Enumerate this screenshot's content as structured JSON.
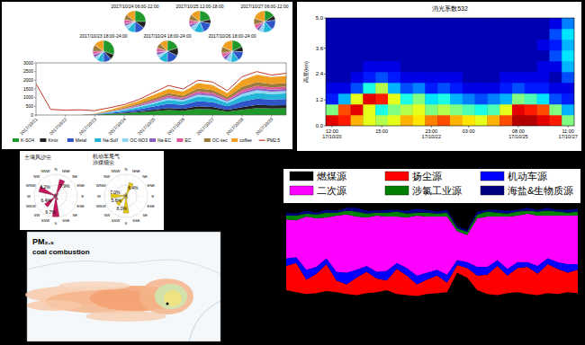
{
  "chart_data": [
    {
      "type": "area",
      "stacked": true,
      "legend": "bottom",
      "grid": false,
      "categories": [
        "2017/10/21",
        null,
        "2017/10/22",
        null,
        "2017/10/23",
        null,
        "2017/10/24",
        null,
        "2017/10/25",
        null,
        "2017/10/26",
        null,
        "2017/10/27",
        null,
        "2017/10/28",
        null,
        "2017/10/29",
        null
      ],
      "ylim": [
        0,
        3000
      ],
      "yticks": [
        0,
        500,
        1000,
        1500,
        2000,
        2500,
        3000
      ],
      "series": [
        {
          "name": "K-SO4",
          "type": "area",
          "color": "#1f9a2a",
          "values": [
            0,
            0,
            0,
            0,
            10,
            60,
            90,
            150,
            220,
            280,
            250,
            350,
            320,
            200,
            300,
            400,
            380,
            390
          ]
        },
        {
          "name": "Kmix",
          "type": "area",
          "color": "#222222",
          "values": [
            0,
            0,
            0,
            0,
            5,
            20,
            40,
            60,
            90,
            120,
            110,
            150,
            140,
            100,
            150,
            180,
            170,
            175
          ]
        },
        {
          "name": "Metal",
          "type": "area",
          "color": "#2f55c8",
          "values": [
            0,
            0,
            0,
            0,
            10,
            40,
            80,
            130,
            180,
            250,
            220,
            300,
            280,
            200,
            320,
            360,
            340,
            350
          ]
        },
        {
          "name": "Na-Sulf",
          "type": "area",
          "color": "#23b5d8",
          "values": [
            0,
            0,
            0,
            0,
            10,
            40,
            70,
            110,
            160,
            220,
            190,
            260,
            250,
            180,
            300,
            330,
            310,
            320
          ]
        },
        {
          "name": "OC-NO3",
          "type": "area",
          "color": "#8fd6f2",
          "values": [
            0,
            0,
            0,
            0,
            5,
            20,
            40,
            60,
            80,
            100,
            90,
            120,
            110,
            90,
            140,
            160,
            150,
            150
          ]
        },
        {
          "name": "Na-EC",
          "type": "area",
          "color": "#8a5fc0",
          "values": [
            0,
            0,
            0,
            0,
            5,
            15,
            25,
            40,
            60,
            70,
            65,
            90,
            85,
            70,
            100,
            120,
            110,
            115
          ]
        },
        {
          "name": "EC",
          "type": "area",
          "color": "#e05a9a",
          "values": [
            0,
            0,
            0,
            0,
            5,
            15,
            25,
            40,
            60,
            80,
            70,
            100,
            95,
            75,
            120,
            130,
            125,
            130
          ]
        },
        {
          "name": "OC-sec",
          "type": "area",
          "color": "#9c7a3c",
          "values": [
            0,
            0,
            0,
            0,
            10,
            30,
            60,
            80,
            110,
            130,
            120,
            160,
            150,
            120,
            190,
            210,
            200,
            205
          ]
        },
        {
          "name": "coffee",
          "type": "area",
          "color": "#f0a020",
          "values": [
            0,
            0,
            0,
            0,
            20,
            60,
            100,
            150,
            200,
            250,
            230,
            300,
            290,
            220,
            380,
            420,
            400,
            410
          ]
        },
        {
          "name": "PM2.5",
          "type": "line",
          "color": "#c0392b",
          "values": [
            1800,
            320,
            280,
            300,
            250,
            420,
            600,
            900,
            1300,
            1700,
            1500,
            2000,
            1900,
            1400,
            2200,
            2500,
            2300,
            2400
          ]
        }
      ]
    },
    {
      "type": "pie",
      "title": "2017/10/23 18:00-24:00",
      "values": [
        30,
        8,
        12,
        10,
        5,
        5,
        5,
        10,
        15
      ],
      "colors": [
        "#1f9a2a",
        "#222222",
        "#2f55c8",
        "#23b5d8",
        "#8fd6f2",
        "#8a5fc0",
        "#e05a9a",
        "#9c7a3c",
        "#f0a020"
      ]
    },
    {
      "type": "pie",
      "title": "2017/10/24 06:00-12:00",
      "values": [
        25,
        10,
        15,
        12,
        6,
        4,
        6,
        8,
        14
      ],
      "colors": [
        "#1f9a2a",
        "#222222",
        "#2f55c8",
        "#23b5d8",
        "#8fd6f2",
        "#8a5fc0",
        "#e05a9a",
        "#9c7a3c",
        "#f0a020"
      ]
    },
    {
      "type": "pie",
      "title": "2017/10/24 18:00-24:00",
      "values": [
        20,
        12,
        18,
        14,
        5,
        5,
        6,
        8,
        12
      ],
      "colors": [
        "#1f9a2a",
        "#222222",
        "#2f55c8",
        "#23b5d8",
        "#8fd6f2",
        "#8a5fc0",
        "#e05a9a",
        "#9c7a3c",
        "#f0a020"
      ]
    },
    {
      "type": "pie",
      "title": "2017/10/25 12:00-18:00",
      "values": [
        22,
        6,
        16,
        15,
        7,
        5,
        6,
        9,
        14
      ],
      "colors": [
        "#1f9a2a",
        "#222222",
        "#2f55c8",
        "#23b5d8",
        "#8fd6f2",
        "#8a5fc0",
        "#e05a9a",
        "#9c7a3c",
        "#f0a020"
      ]
    },
    {
      "type": "pie",
      "title": "2017/10/26 18:00-24:00",
      "values": [
        18,
        8,
        14,
        12,
        8,
        6,
        6,
        10,
        18
      ],
      "colors": [
        "#1f9a2a",
        "#222222",
        "#2f55c8",
        "#23b5d8",
        "#8fd6f2",
        "#8a5fc0",
        "#e05a9a",
        "#9c7a3c",
        "#f0a020"
      ]
    },
    {
      "type": "pie",
      "title": "2017/10/27 06:00-12:00",
      "values": [
        16,
        7,
        15,
        14,
        7,
        5,
        6,
        10,
        20
      ],
      "colors": [
        "#1f9a2a",
        "#222222",
        "#2f55c8",
        "#23b5d8",
        "#8fd6f2",
        "#8a5fc0",
        "#e05a9a",
        "#9c7a3c",
        "#f0a020"
      ]
    },
    {
      "type": "heatmap",
      "title": "消光系数532",
      "y_label": "高度(km)",
      "categories": [
        "12:00\n17/10/20",
        null,
        null,
        null,
        "15:00",
        null,
        null,
        null,
        "23:00\n17/10/22",
        null,
        null,
        "03:00",
        null,
        null,
        null,
        "08:00\n17/10/25",
        null,
        null,
        null,
        "11:00\n17/10/27"
      ],
      "y": [
        0.25,
        0.75,
        1.25,
        1.75,
        2.25,
        2.75,
        3.25,
        3.75,
        4.25,
        4.75
      ],
      "ylim": [
        0,
        5
      ],
      "yticks": [
        {
          "value": 0,
          "label": "0.0"
        },
        1.2,
        2.4,
        3.6,
        {
          "value": 5,
          "label": "5.0"
        }
      ],
      "color_range": [
        0,
        1
      ],
      "cells": [
        [
          0.9,
          0.85,
          0.7,
          0.6,
          0.55,
          0.6,
          0.7,
          0.65,
          0.75,
          0.8,
          0.7,
          0.65,
          0.6,
          0.7,
          0.8,
          0.95,
          0.95,
          0.9,
          0.85,
          0.5
        ],
        [
          0.5,
          0.8,
          0.9,
          0.6,
          0.4,
          0.5,
          0.55,
          0.6,
          0.5,
          0.55,
          0.5,
          0.45,
          0.4,
          0.45,
          0.6,
          0.9,
          0.85,
          0.8,
          0.5,
          0.3
        ],
        [
          0.15,
          0.3,
          0.6,
          0.9,
          0.85,
          0.6,
          0.4,
          0.5,
          0.35,
          0.4,
          0.3,
          0.25,
          0.2,
          0.25,
          0.3,
          0.5,
          0.45,
          0.35,
          0.2,
          0.15
        ],
        [
          0.1,
          0.1,
          0.2,
          0.4,
          0.55,
          0.3,
          0.2,
          0.25,
          0.15,
          0.2,
          0.15,
          0.1,
          0.1,
          0.1,
          0.15,
          0.2,
          0.15,
          0.15,
          0.1,
          0.1
        ],
        [
          0.05,
          0.05,
          0.1,
          0.15,
          0.2,
          0.15,
          0.1,
          0.1,
          0.1,
          0.1,
          0.1,
          0.05,
          0.05,
          0.05,
          0.1,
          0.1,
          0.1,
          0.1,
          0.05,
          0.2
        ],
        [
          0.05,
          0.05,
          0.05,
          0.1,
          0.1,
          0.1,
          0.05,
          0.05,
          0.05,
          0.05,
          0.05,
          0.05,
          0.05,
          0.05,
          0.05,
          0.05,
          0.05,
          0.1,
          0.1,
          0.3
        ],
        [
          0.05,
          0.05,
          0.05,
          0.05,
          0.05,
          0.05,
          0.05,
          0.05,
          0.05,
          0.05,
          0.05,
          0.05,
          0.05,
          0.05,
          0.05,
          0.05,
          0.05,
          0.05,
          0.2,
          0.35
        ],
        [
          0.05,
          0.05,
          0.05,
          0.05,
          0.05,
          0.05,
          0.05,
          0.05,
          0.05,
          0.05,
          0.05,
          0.05,
          0.05,
          0.05,
          0.05,
          0.05,
          0.05,
          0.1,
          0.15,
          0.3
        ],
        [
          0.05,
          0.05,
          0.05,
          0.05,
          0.05,
          0.05,
          0.05,
          0.05,
          0.05,
          0.05,
          0.05,
          0.05,
          0.05,
          0.05,
          0.05,
          0.05,
          0.05,
          0.05,
          0.2,
          0.35
        ],
        [
          0.05,
          0.05,
          0.05,
          0.05,
          0.05,
          0.05,
          0.05,
          0.05,
          0.05,
          0.05,
          0.05,
          0.05,
          0.05,
          0.05,
          0.05,
          0.05,
          0.05,
          0.05,
          0.1,
          0.25
        ]
      ]
    },
    {
      "type": "rose",
      "title": "土壤风沙尘",
      "color": "#c2185b",
      "data_labels": true,
      "tick_labels": false,
      "grid": true,
      "categories": [
        "N",
        "NNE",
        "NE",
        "ENE",
        "E",
        "ESE",
        "SE",
        "SSE",
        "S",
        "SSW",
        "SW",
        "WSW",
        "W",
        "WNW",
        "NW",
        "NNW"
      ],
      "ylim": [
        0,
        10
      ],
      "yticks": [
        5,
        10
      ],
      "values": [
        1.0,
        7.9,
        1.5,
        0.8,
        0.6,
        0.5,
        0.8,
        2.0,
        9.7,
        1.2,
        6.4,
        1.0,
        1.3,
        8.2,
        1.1,
        0.9
      ],
      "value_labels": [
        null,
        "7.9%",
        null,
        null,
        null,
        null,
        null,
        null,
        "9.7%",
        null,
        "6.4%",
        null,
        null,
        "8.2%",
        null,
        null
      ]
    },
    {
      "type": "rose",
      "title": "机动车尾气",
      "subtitle": "涉煤烟尘",
      "color": "#e6c619",
      "data_labels": true,
      "tick_labels": false,
      "grid": true,
      "categories": [
        "N",
        "NNE",
        "NE",
        "ENE",
        "E",
        "ESE",
        "SE",
        "SSE",
        "S",
        "SSW",
        "SW",
        "WSW",
        "W",
        "WNW",
        "NW",
        "NNW"
      ],
      "ylim": [
        0,
        10
      ],
      "yticks": [
        5,
        10
      ],
      "values": [
        1.2,
        6.4,
        1.0,
        0.7,
        0.5,
        0.6,
        0.9,
        1.5,
        8.0,
        1.4,
        5.6,
        1.1,
        7.0,
        1.2,
        0.9,
        1.0
      ],
      "value_labels": [
        null,
        "6.4%",
        null,
        null,
        null,
        null,
        null,
        null,
        "8.0%",
        null,
        "5.6%",
        null,
        "7.0%",
        null,
        null,
        null
      ]
    },
    {
      "type": "map",
      "title": "PM₂.₅",
      "subtitle": "coal combustion"
    },
    {
      "type": "area",
      "stacked": true,
      "legend": "top",
      "tick_labels": false,
      "categories": [
        null,
        null,
        null,
        null,
        null,
        null,
        null,
        null,
        null,
        null,
        null,
        null,
        null,
        null,
        null,
        null,
        null,
        null,
        null,
        null,
        null,
        null,
        null,
        null,
        null,
        null,
        null,
        null,
        null,
        null
      ],
      "ylim": [
        0,
        100
      ],
      "series": [
        {
          "name": "燃煤源",
          "color": "#000000",
          "values": [
            12,
            10,
            8,
            9,
            11,
            10,
            8,
            7,
            9,
            10,
            12,
            8,
            7,
            6,
            8,
            9,
            10,
            30,
            25,
            12,
            8,
            7,
            9,
            10,
            8,
            7,
            9,
            8,
            10,
            9
          ]
        },
        {
          "name": "扬尘源",
          "color": "#ff0000",
          "values": [
            25,
            30,
            15,
            20,
            28,
            12,
            10,
            18,
            22,
            14,
            10,
            26,
            20,
            12,
            15,
            18,
            10,
            8,
            10,
            15,
            20,
            30,
            18,
            25,
            28,
            22,
            30,
            26,
            20,
            24
          ]
        },
        {
          "name": "机动车源",
          "color": "#0000ff",
          "values": [
            8,
            6,
            10,
            7,
            6,
            9,
            12,
            8,
            6,
            7,
            10,
            6,
            8,
            9,
            7,
            6,
            8,
            5,
            6,
            9,
            8,
            6,
            7,
            6,
            5,
            8,
            6,
            7,
            9,
            6
          ]
        },
        {
          "name": "二次源",
          "color": "#ff00ff",
          "values": [
            40,
            38,
            55,
            50,
            42,
            58,
            60,
            55,
            50,
            58,
            56,
            48,
            52,
            62,
            58,
            55,
            60,
            30,
            28,
            50,
            52,
            45,
            54,
            48,
            50,
            52,
            44,
            48,
            50,
            50
          ]
        },
        {
          "name": "涉氯工业源",
          "color": "#008000",
          "values": [
            4,
            5,
            3,
            4,
            5,
            3,
            4,
            5,
            4,
            3,
            4,
            5,
            4,
            3,
            4,
            3,
            4,
            3,
            3,
            4,
            5,
            4,
            3,
            4,
            3,
            4,
            5,
            4,
            3,
            4
          ]
        },
        {
          "name": "海盐&生物质源",
          "color": "#000080",
          "values": [
            3,
            2,
            3,
            2,
            3,
            2,
            3,
            4,
            3,
            2,
            3,
            2,
            3,
            4,
            3,
            2,
            3,
            2,
            2,
            3,
            2,
            3,
            3,
            2,
            3,
            2,
            3,
            2,
            3,
            3
          ]
        }
      ]
    }
  ]
}
